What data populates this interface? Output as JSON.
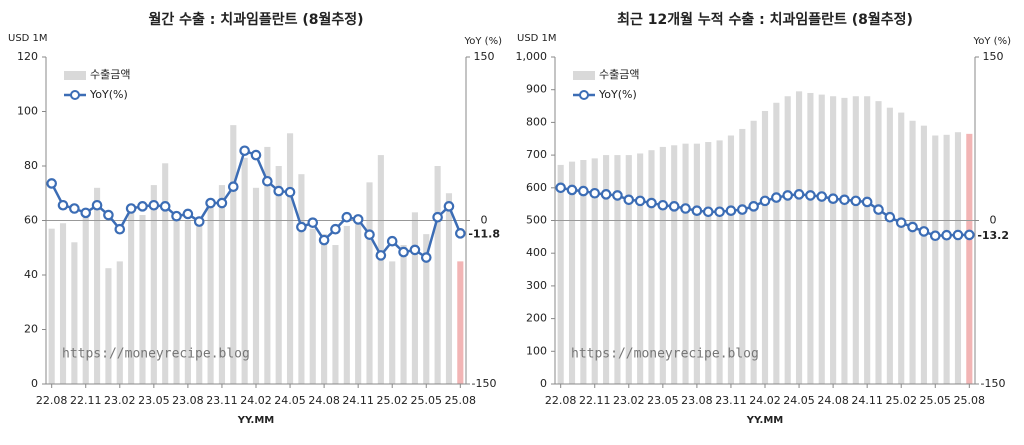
{
  "chart_data": [
    {
      "type": "bar-line",
      "title": "월간 수출 : 치과임플란트 (8월추정)",
      "ylabel": "USD 1M",
      "y2label": "YoY (%)",
      "xlabel": "YY.MM",
      "annotation": "https://moneyrecipe.blog",
      "categories": [
        "22.08",
        null,
        null,
        "22.11",
        null,
        null,
        "23.02",
        null,
        null,
        "23.05",
        null,
        null,
        "23.08",
        null,
        null,
        "23.11",
        null,
        null,
        "24.02",
        null,
        null,
        "24.05",
        null,
        null,
        "24.08",
        null,
        null,
        "24.11",
        null,
        null,
        "25.02",
        null,
        null,
        "25.05",
        null,
        null,
        "25.08"
      ],
      "series": [
        {
          "name": "수출금액",
          "color": "#d9d9d9",
          "highlight_color": "#f2b5b5",
          "values": [
            57,
            59,
            52,
            62,
            72,
            42.5,
            45,
            64,
            62,
            73,
            81,
            62,
            60,
            58,
            66,
            73,
            95,
            83,
            72,
            87,
            80,
            92,
            77,
            57,
            55,
            51,
            58,
            62,
            74,
            84,
            45,
            51,
            63,
            55,
            80,
            70,
            45
          ]
        },
        {
          "name": "YoY(%)",
          "color": "#3c6db5",
          "axis": "y2",
          "label_color": "#e8231e",
          "values": [
            34,
            14,
            11,
            7,
            14,
            5,
            -8,
            11,
            13,
            14,
            13,
            4,
            6,
            -1,
            16,
            16,
            31,
            64,
            60,
            36,
            27,
            26,
            -6,
            -2,
            -18,
            -8,
            3,
            1,
            -13,
            -32,
            -19,
            -29,
            -27,
            -34,
            3,
            13,
            -11.8
          ],
          "value_labels": [
            null,
            null,
            null,
            null,
            null,
            null,
            null,
            null,
            null,
            null,
            null,
            null,
            null,
            null,
            null,
            null,
            null,
            null,
            null,
            null,
            null,
            null,
            null,
            null,
            null,
            null,
            null,
            null,
            null,
            null,
            null,
            null,
            null,
            null,
            null,
            null,
            "-11.8"
          ]
        }
      ],
      "ylim": [
        0,
        120
      ],
      "yticks": [
        0,
        20,
        40,
        60,
        80,
        100,
        120
      ],
      "y2lim": [
        -150,
        150
      ],
      "y2ticks": [
        150,
        0,
        -150
      ],
      "legend": "upper left"
    },
    {
      "type": "bar-line",
      "title": "최근 12개월 누적 수출 : 치과임플란트 (8월추정)",
      "ylabel": "USD 1M",
      "y2label": "YoY (%)",
      "xlabel": "YY.MM",
      "annotation": "https://moneyrecipe.blog",
      "categories": [
        "22.08",
        null,
        null,
        "22.11",
        null,
        null,
        "23.02",
        null,
        null,
        "23.05",
        null,
        null,
        "23.08",
        null,
        null,
        "23.11",
        null,
        null,
        "24.02",
        null,
        null,
        "24.05",
        null,
        null,
        "24.08",
        null,
        null,
        "24.11",
        null,
        null,
        "25.02",
        null,
        null,
        "25.05",
        null,
        null,
        "25.08"
      ],
      "series": [
        {
          "name": "수출금액",
          "color": "#d9d9d9",
          "highlight_color": "#f2b5b5",
          "values": [
            670,
            680,
            685,
            690,
            700,
            700,
            700,
            705,
            715,
            725,
            730,
            735,
            735,
            740,
            745,
            760,
            780,
            805,
            835,
            860,
            880,
            895,
            890,
            885,
            880,
            875,
            880,
            880,
            865,
            845,
            830,
            805,
            790,
            760,
            762,
            770,
            765
          ]
        },
        {
          "name": "YoY(%)",
          "color": "#3c6db5",
          "axis": "y2",
          "label_color": "#e8231e",
          "values": [
            30,
            28,
            27,
            25,
            24,
            23,
            19,
            18,
            16,
            14,
            13,
            11,
            9,
            8,
            8,
            9,
            10,
            13,
            18,
            21,
            23,
            24,
            23,
            22,
            20,
            19,
            18,
            17,
            10,
            3,
            -2,
            -6,
            -10,
            -14,
            -13.5,
            -13.3,
            -13.2
          ],
          "value_labels": [
            null,
            null,
            null,
            null,
            null,
            null,
            null,
            null,
            null,
            null,
            null,
            null,
            null,
            null,
            null,
            null,
            null,
            null,
            null,
            null,
            null,
            null,
            null,
            null,
            null,
            null,
            null,
            null,
            null,
            null,
            null,
            null,
            null,
            null,
            null,
            null,
            "-13.2"
          ]
        }
      ],
      "ylim": [
        0,
        1000
      ],
      "yticks": [
        0,
        100,
        200,
        300,
        400,
        500,
        600,
        700,
        800,
        900,
        {
          "value": 1000,
          "label": "1,000"
        }
      ],
      "y2lim": [
        -150,
        150
      ],
      "y2ticks": [
        150,
        0,
        -150
      ],
      "legend": "upper left"
    }
  ]
}
